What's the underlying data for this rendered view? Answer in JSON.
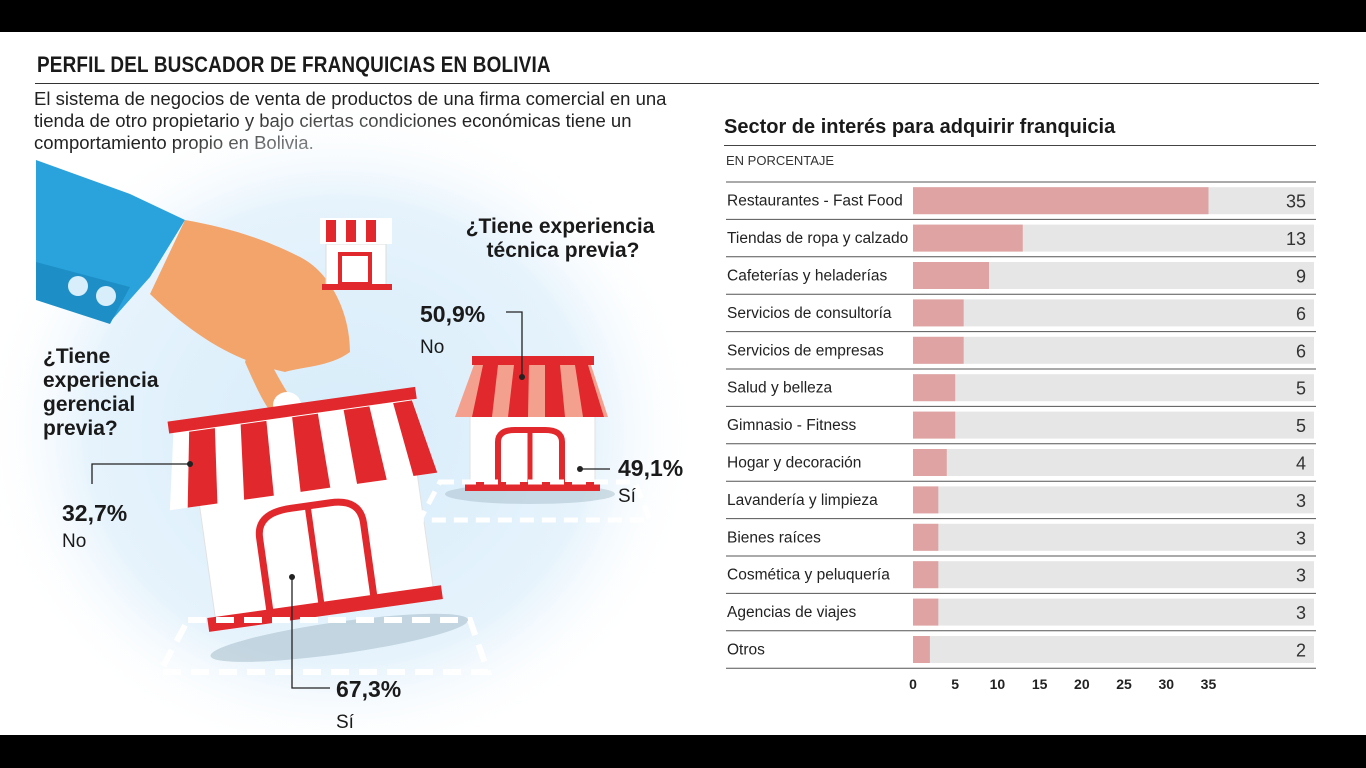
{
  "header": {
    "title": "PERFIL DEL BUSCADOR DE FRANQUICIAS EN BOLIVIA",
    "intro": "El sistema de negocios de venta de productos de una firma comercial en una tienda de otro propietario y bajo ciertas condiciones económicas tiene un comportamiento propio en Bolivia."
  },
  "illustration": {
    "managerial": {
      "question_lines": [
        "¿Tiene",
        "experiencia",
        "gerencial",
        "previa?"
      ],
      "no": {
        "pct": "32,7%",
        "label": "No"
      },
      "yes": {
        "pct": "67,3%",
        "label": "Sí"
      }
    },
    "technical": {
      "question_lines": [
        "¿Tiene experiencia",
        "técnica previa?"
      ],
      "no": {
        "pct": "50,9%",
        "label": "No"
      },
      "yes": {
        "pct": "49,1%",
        "label": "Sí"
      }
    }
  },
  "colors": {
    "bar": "#dea3a2",
    "track": "#e6e6e6",
    "red": "#e1282c",
    "blue": "#2aa3dd",
    "sky": "#cfe8f8"
  },
  "chart_data": {
    "type": "bar",
    "orientation": "horizontal",
    "title": "Sector de interés para adquirir franquicia",
    "subtitle": "EN PORCENTAJE",
    "categories": [
      "Restaurantes - Fast Food",
      "Tiendas de ropa y calzado",
      "Cafeterías y heladerías",
      "Servicios de consultoría",
      "Servicios de empresas",
      "Salud y belleza",
      "Gimnasio - Fitness",
      "Hogar y decoración",
      "Lavandería y limpieza",
      "Bienes raíces",
      "Cosmética y peluquería",
      "Agencias de viajes",
      "Otros"
    ],
    "values": [
      35,
      13,
      9,
      6,
      6,
      5,
      5,
      4,
      3,
      3,
      3,
      3,
      2
    ],
    "xticks": [
      0,
      5,
      10,
      15,
      20,
      25,
      30,
      35
    ],
    "xlim": [
      0,
      47.5
    ],
    "grid": false
  }
}
